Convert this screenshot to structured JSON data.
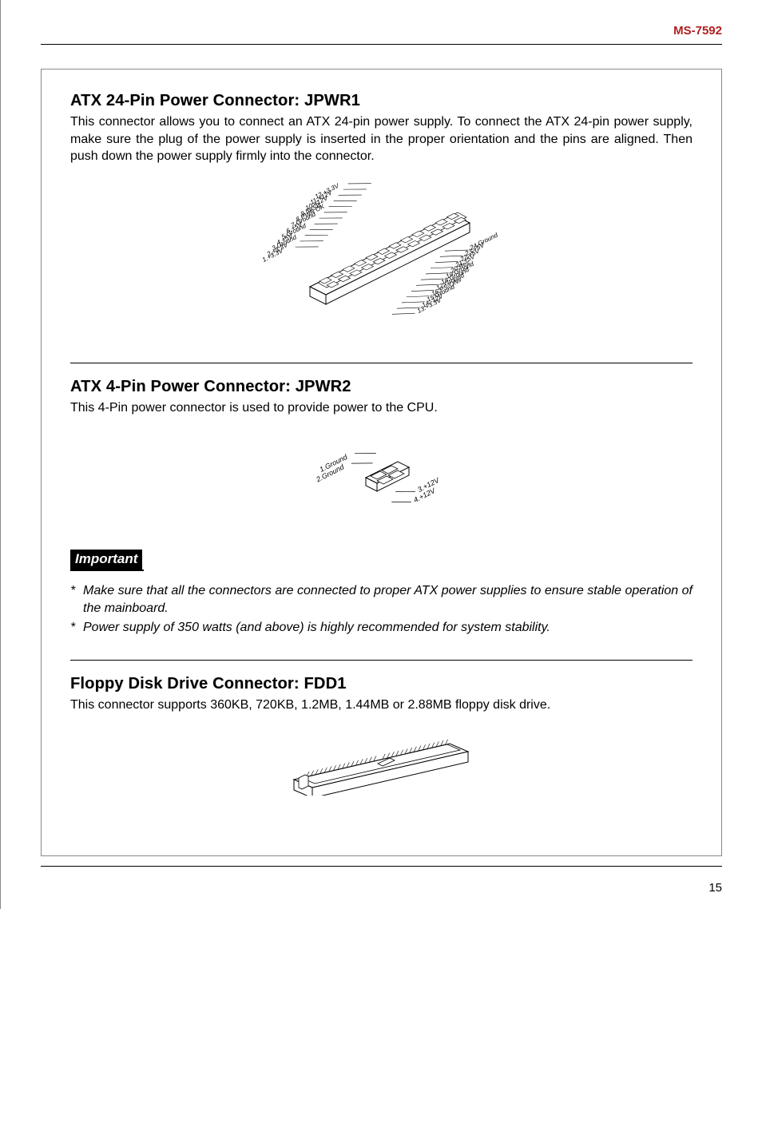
{
  "header": {
    "model": "MS-7592"
  },
  "section_atx24": {
    "title": "ATX 24-Pin Power Connector: JPWR1",
    "text": "This connector allows you to connect an ATX 24-pin power supply. To connect the ATX 24-pin power supply, make sure the plug of the power supply is inserted in the proper orientation and the pins are aligned. Then push down the power supply firmly into the connector.",
    "pins_left": [
      "12.+3.3V",
      "11.+12V",
      "10.+12V",
      "9.5VSB",
      "8.PWR OK",
      "7.Ground",
      "6.+5V",
      "5.Ground",
      "4.+5V",
      "3.Ground",
      "2.+3.3V",
      "1.+3.3V"
    ],
    "pins_right": [
      "24.Ground",
      "23.+5V",
      "22.+5V",
      "21.+5V",
      "20.Res",
      "19.Ground",
      "18.Ground",
      "17.Ground",
      "16.PS-ON#",
      "15.Ground",
      "14.-12V",
      "13.+3.3V"
    ]
  },
  "section_atx4": {
    "title": "ATX 4-Pin Power Connector: JPWR2",
    "text": "This 4-Pin power connector is used to provide power to the CPU.",
    "pins_left": [
      "1.Ground",
      "2.Ground"
    ],
    "pins_right": [
      "3.+12V",
      "4.+12V"
    ]
  },
  "important": {
    "label": "Important",
    "items": [
      "Make sure that all the connectors are connected to proper ATX power supplies to ensure stable operation of the mainboard.",
      "Power supply of 350 watts (and above) is highly recommended for system stability."
    ]
  },
  "section_fdd": {
    "title": "Floppy Disk Drive Connector: FDD1",
    "text": "This connector supports 360KB, 720KB, 1.2MB, 1.44MB or 2.88MB floppy disk drive."
  },
  "footer": {
    "page": "15"
  }
}
